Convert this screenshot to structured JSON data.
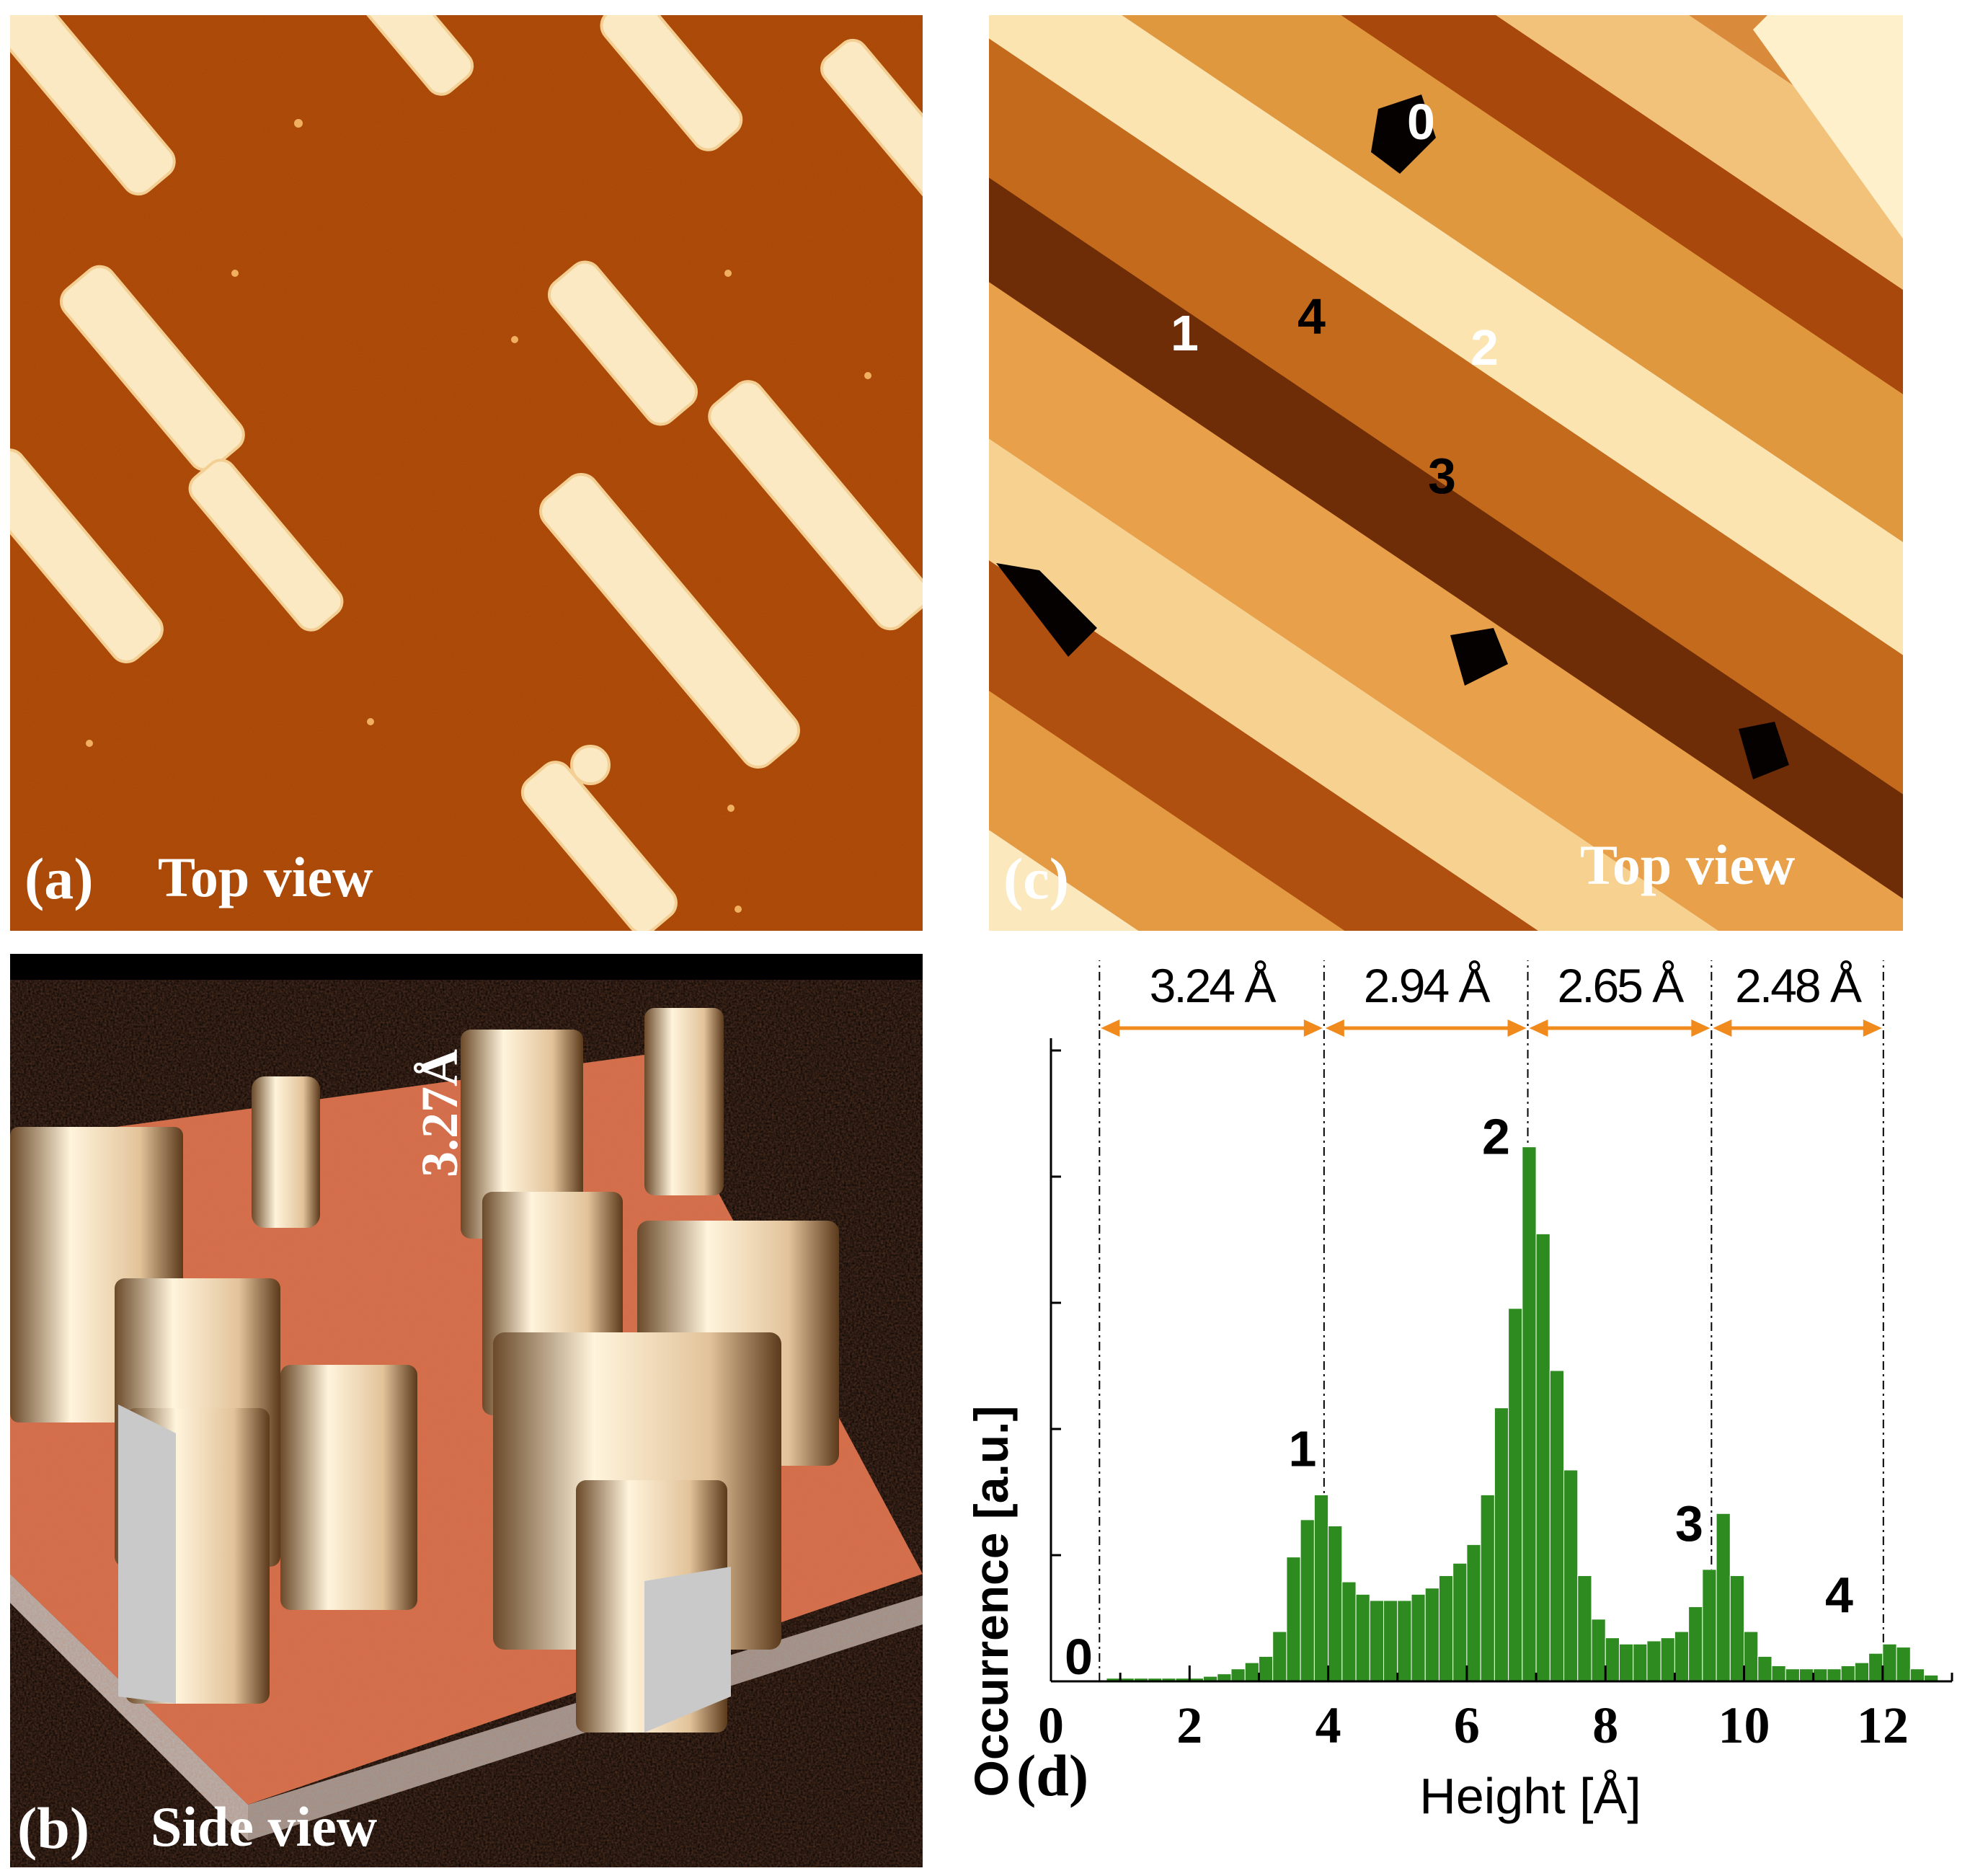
{
  "panel_a": {
    "letter": "(a)",
    "caption": "Top view"
  },
  "panel_b": {
    "letter": "(b)",
    "caption": "Side view",
    "height_annotation": "3.27Å"
  },
  "panel_c": {
    "letter": "(c)",
    "caption": "Top view",
    "level_labels": [
      "0",
      "1",
      "2",
      "3",
      "4"
    ]
  },
  "panel_d": {
    "letter": "(d)",
    "chart_data": {
      "type": "bar",
      "xlabel": "Height [Å]",
      "ylabel": "Occurrence [a.u.]",
      "xlim": [
        0,
        13
      ],
      "xticks": [
        "0",
        "2",
        "4",
        "6",
        "8",
        "10",
        "12"
      ],
      "bin_width": 0.2,
      "x": [
        0.1,
        0.3,
        0.5,
        0.7,
        0.9,
        1.1,
        1.3,
        1.5,
        1.7,
        1.9,
        2.1,
        2.3,
        2.5,
        2.7,
        2.9,
        3.1,
        3.3,
        3.5,
        3.7,
        3.9,
        4.1,
        4.3,
        4.5,
        4.7,
        4.9,
        5.1,
        5.3,
        5.5,
        5.7,
        5.9,
        6.1,
        6.3,
        6.5,
        6.7,
        6.9,
        7.1,
        7.3,
        7.5,
        7.7,
        7.9,
        8.1,
        8.3,
        8.5,
        8.7,
        8.9,
        9.1,
        9.3,
        9.5,
        9.7,
        9.9,
        10.1,
        10.3,
        10.5,
        10.7,
        10.9,
        11.1,
        11.3,
        11.5,
        11.7,
        11.9,
        12.1,
        12.3,
        12.5,
        12.7
      ],
      "values": [
        0.0,
        0.0,
        0.0,
        0.0,
        0.005,
        0.005,
        0.005,
        0.005,
        0.005,
        0.005,
        0.005,
        0.008,
        0.012,
        0.02,
        0.03,
        0.04,
        0.08,
        0.2,
        0.26,
        0.3,
        0.25,
        0.16,
        0.14,
        0.13,
        0.13,
        0.13,
        0.14,
        0.15,
        0.17,
        0.19,
        0.22,
        0.3,
        0.44,
        0.6,
        0.86,
        0.72,
        0.5,
        0.34,
        0.17,
        0.1,
        0.07,
        0.06,
        0.06,
        0.065,
        0.07,
        0.08,
        0.12,
        0.18,
        0.27,
        0.17,
        0.08,
        0.04,
        0.025,
        0.02,
        0.02,
        0.02,
        0.02,
        0.025,
        0.03,
        0.045,
        0.06,
        0.055,
        0.02,
        0.01
      ],
      "peaks": [
        {
          "label": "0",
          "x": 0.4
        },
        {
          "label": "1",
          "x": 3.9
        },
        {
          "label": "2",
          "x": 6.9
        },
        {
          "label": "3",
          "x": 9.5
        },
        {
          "label": "4",
          "x": 12.1
        }
      ],
      "level_boundaries": [
        0.7,
        3.94,
        6.88,
        9.53,
        12.01
      ],
      "spacings": [
        "3.24 Å",
        "2.94 Å",
        "2.65 Å",
        "2.48 Å"
      ],
      "bar_color": "#2e8b1f",
      "arrow_color": "#f08a1c"
    }
  }
}
